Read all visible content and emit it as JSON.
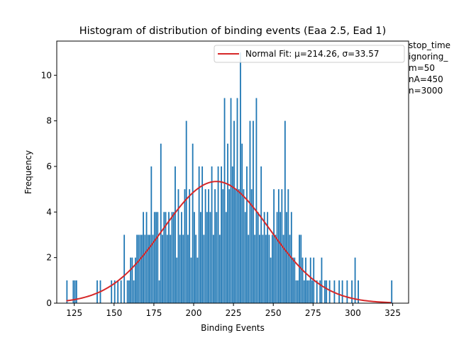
{
  "chart_data": {
    "type": "bar",
    "title": "Histogram of distribution of binding events (Eaa 2.5, Ead 1)",
    "xlabel": "Binding Events",
    "ylabel": "Frequency",
    "xlim": [
      114,
      335
    ],
    "ylim": [
      0,
      11.5
    ],
    "xticks": [
      125,
      150,
      175,
      200,
      225,
      250,
      275,
      300,
      325
    ],
    "yticks": [
      0,
      2,
      4,
      6,
      8,
      10
    ],
    "bar_color": "#1f77b4",
    "fit_color": "#d62728",
    "grid": false,
    "legend_position": "top-right",
    "legend": [
      "Normal Fit: μ=214.26, σ=33.57"
    ],
    "fit": {
      "mu": 214.26,
      "sigma": 33.57,
      "peak": 5.34,
      "x_range": [
        120,
        324
      ]
    },
    "bar_width": 0.8,
    "bins": [
      [
        120,
        1
      ],
      [
        124,
        1
      ],
      [
        125,
        1
      ],
      [
        126,
        1
      ],
      [
        139,
        1
      ],
      [
        141,
        1
      ],
      [
        148,
        1
      ],
      [
        150,
        1
      ],
      [
        152,
        1
      ],
      [
        154,
        1
      ],
      [
        156,
        3
      ],
      [
        158,
        1
      ],
      [
        159,
        1
      ],
      [
        160,
        2
      ],
      [
        161,
        2
      ],
      [
        162,
        1
      ],
      [
        163,
        2
      ],
      [
        164,
        3
      ],
      [
        165,
        3
      ],
      [
        166,
        3
      ],
      [
        167,
        3
      ],
      [
        168,
        4
      ],
      [
        169,
        3
      ],
      [
        170,
        4
      ],
      [
        171,
        3
      ],
      [
        172,
        3
      ],
      [
        173,
        6
      ],
      [
        174,
        3
      ],
      [
        175,
        4
      ],
      [
        176,
        4
      ],
      [
        177,
        4
      ],
      [
        178,
        1
      ],
      [
        179,
        7
      ],
      [
        180,
        3
      ],
      [
        181,
        4
      ],
      [
        182,
        4
      ],
      [
        183,
        3
      ],
      [
        184,
        4
      ],
      [
        185,
        3
      ],
      [
        186,
        4
      ],
      [
        187,
        4
      ],
      [
        188,
        6
      ],
      [
        189,
        2
      ],
      [
        190,
        5
      ],
      [
        191,
        3
      ],
      [
        192,
        4
      ],
      [
        193,
        3
      ],
      [
        194,
        5
      ],
      [
        195,
        8
      ],
      [
        196,
        3
      ],
      [
        197,
        5
      ],
      [
        198,
        2
      ],
      [
        199,
        7
      ],
      [
        200,
        4
      ],
      [
        201,
        3
      ],
      [
        202,
        2
      ],
      [
        203,
        6
      ],
      [
        204,
        4
      ],
      [
        205,
        6
      ],
      [
        206,
        3
      ],
      [
        207,
        5
      ],
      [
        208,
        4
      ],
      [
        209,
        5
      ],
      [
        210,
        4
      ],
      [
        211,
        6
      ],
      [
        212,
        3
      ],
      [
        213,
        5
      ],
      [
        214,
        4
      ],
      [
        215,
        6
      ],
      [
        216,
        3
      ],
      [
        217,
        6
      ],
      [
        218,
        5
      ],
      [
        219,
        9
      ],
      [
        220,
        4
      ],
      [
        221,
        7
      ],
      [
        222,
        5
      ],
      [
        223,
        9
      ],
      [
        224,
        6
      ],
      [
        225,
        8
      ],
      [
        226,
        5
      ],
      [
        227,
        9
      ],
      [
        228,
        5
      ],
      [
        229,
        11
      ],
      [
        230,
        7
      ],
      [
        231,
        5
      ],
      [
        232,
        4
      ],
      [
        233,
        6
      ],
      [
        234,
        3
      ],
      [
        235,
        8
      ],
      [
        236,
        5
      ],
      [
        237,
        8
      ],
      [
        238,
        3
      ],
      [
        239,
        9
      ],
      [
        240,
        4
      ],
      [
        241,
        3
      ],
      [
        242,
        6
      ],
      [
        243,
        3
      ],
      [
        244,
        4
      ],
      [
        245,
        3
      ],
      [
        246,
        4
      ],
      [
        247,
        3
      ],
      [
        248,
        2
      ],
      [
        249,
        3
      ],
      [
        250,
        5
      ],
      [
        251,
        3
      ],
      [
        252,
        4
      ],
      [
        253,
        5
      ],
      [
        254,
        4
      ],
      [
        255,
        5
      ],
      [
        256,
        3
      ],
      [
        257,
        8
      ],
      [
        258,
        4
      ],
      [
        259,
        5
      ],
      [
        260,
        3
      ],
      [
        261,
        4
      ],
      [
        262,
        2
      ],
      [
        263,
        2
      ],
      [
        264,
        1
      ],
      [
        265,
        1
      ],
      [
        266,
        3
      ],
      [
        267,
        3
      ],
      [
        268,
        2
      ],
      [
        269,
        1
      ],
      [
        270,
        2
      ],
      [
        271,
        1
      ],
      [
        272,
        1
      ],
      [
        273,
        2
      ],
      [
        274,
        1
      ],
      [
        275,
        2
      ],
      [
        277,
        1
      ],
      [
        279,
        1
      ],
      [
        280,
        2
      ],
      [
        282,
        1
      ],
      [
        283,
        1
      ],
      [
        285,
        1
      ],
      [
        288,
        1
      ],
      [
        291,
        1
      ],
      [
        293,
        1
      ],
      [
        296,
        1
      ],
      [
        299,
        1
      ],
      [
        301,
        2
      ],
      [
        303,
        1
      ],
      [
        324,
        1
      ]
    ]
  },
  "annotation_lines": [
    "stop_time",
    "ignoring_",
    "m=50",
    "nA=450",
    "n=3000"
  ]
}
